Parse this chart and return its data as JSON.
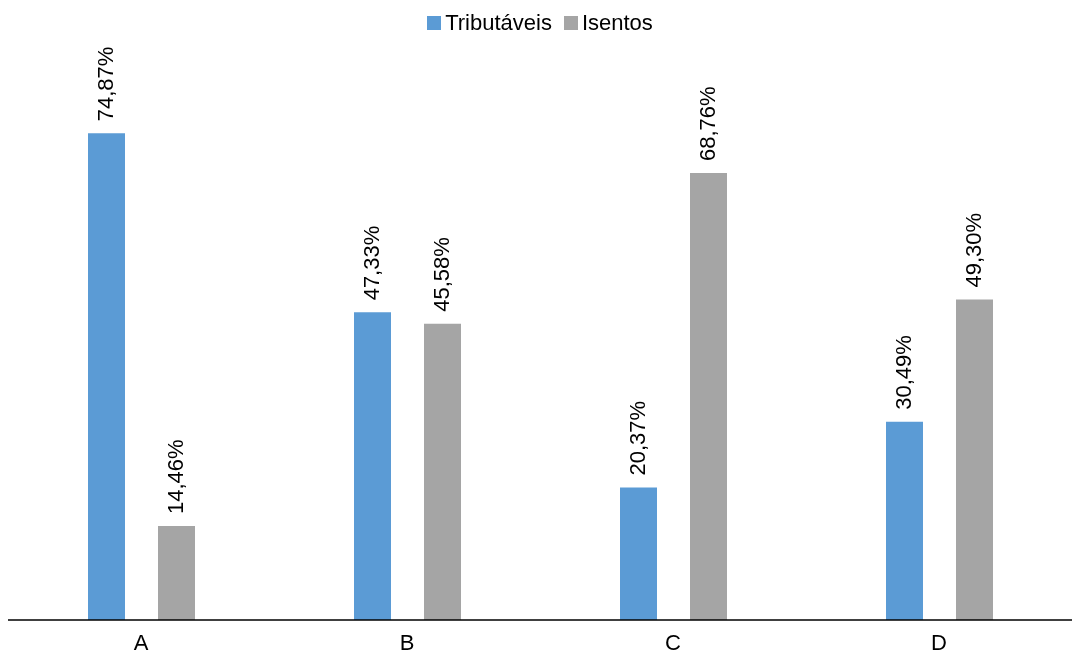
{
  "chart_data": {
    "type": "bar",
    "categories": [
      "A",
      "B",
      "C",
      "D"
    ],
    "series": [
      {
        "name": "Tributáveis",
        "color": "#5b9bd5",
        "values": [
          74.87,
          47.33,
          20.37,
          30.49
        ],
        "value_labels": [
          "74,87%",
          "47,33%",
          "20,37%",
          "30,49%"
        ]
      },
      {
        "name": "Isentos",
        "color": "#a5a5a5",
        "values": [
          14.46,
          45.58,
          68.76,
          49.3
        ],
        "value_labels": [
          "14,46%",
          "45,58%",
          "68,76%",
          "49,30%"
        ]
      }
    ],
    "legend": "top",
    "grid": false
  }
}
